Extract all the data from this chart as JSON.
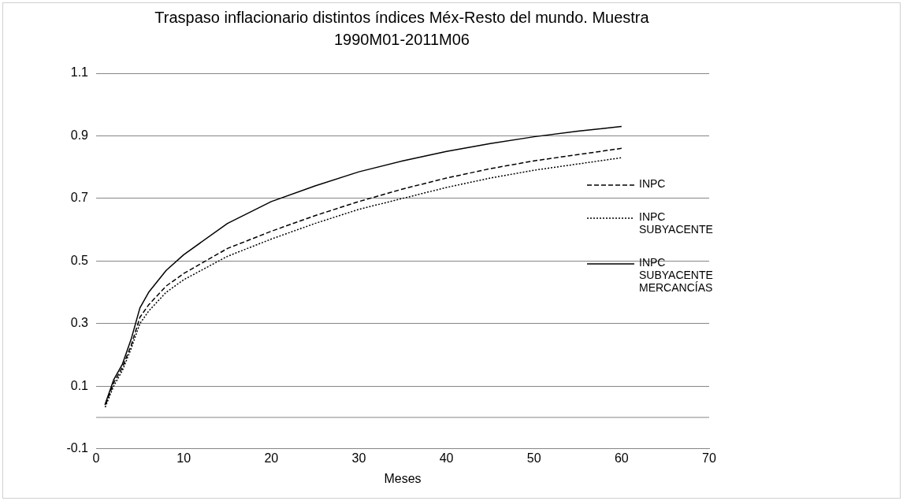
{
  "chart_data": {
    "type": "line",
    "title": "Traspaso inflacionario distintos índices Méx-Resto del mundo. Muestra 1990M01-2011M06",
    "xlabel": "Meses",
    "xlim": [
      0,
      70
    ],
    "xticks": [
      0,
      10,
      20,
      30,
      40,
      50,
      60,
      70
    ],
    "ylim": [
      -0.1,
      1.1
    ],
    "yticks": [
      -0.1,
      0.1,
      0.3,
      0.5,
      0.7,
      0.9,
      1.1
    ],
    "grid": "y",
    "legend": "right",
    "marker": "none",
    "ref_lines": [
      {
        "axis": "y",
        "value": 0,
        "color": "#868686"
      }
    ],
    "x": [
      1,
      2,
      3,
      4,
      5,
      6,
      8,
      10,
      15,
      20,
      25,
      30,
      35,
      40,
      45,
      50,
      55,
      60
    ],
    "series": [
      {
        "name": "INPC",
        "color": "#000000",
        "line_style": "dashed",
        "values": [
          0.035,
          0.11,
          0.16,
          0.23,
          0.32,
          0.36,
          0.42,
          0.46,
          0.54,
          0.595,
          0.645,
          0.69,
          0.73,
          0.765,
          0.795,
          0.82,
          0.84,
          0.86
        ]
      },
      {
        "name": "INPC SUBYACENTE",
        "color": "#000000",
        "line_style": "dotted",
        "values": [
          0.03,
          0.1,
          0.15,
          0.22,
          0.3,
          0.34,
          0.4,
          0.44,
          0.515,
          0.57,
          0.62,
          0.665,
          0.7,
          0.735,
          0.765,
          0.79,
          0.81,
          0.83
        ]
      },
      {
        "name": "INPC SUBYACENTE MERCANCÍAS",
        "color": "#000000",
        "line_style": "solid",
        "values": [
          0.04,
          0.12,
          0.17,
          0.25,
          0.35,
          0.4,
          0.47,
          0.52,
          0.62,
          0.69,
          0.74,
          0.785,
          0.82,
          0.85,
          0.875,
          0.897,
          0.915,
          0.93
        ]
      }
    ]
  }
}
